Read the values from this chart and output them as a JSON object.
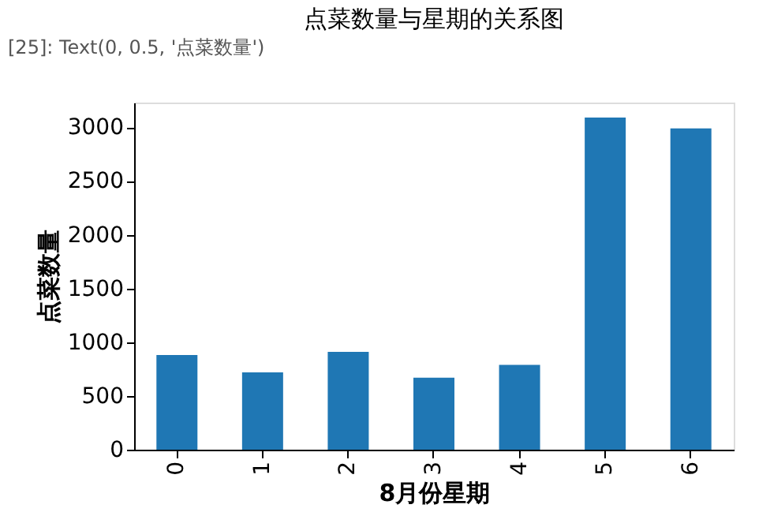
{
  "chart_data": {
    "type": "bar",
    "title": "点菜数量与星期的关系图",
    "xlabel": "8月份星期",
    "ylabel": "点菜数量",
    "annotations": [
      "[25]:  Text(0, 0.5, '点菜数量')"
    ],
    "categories": [
      "0",
      "1",
      "2",
      "3",
      "4",
      "5",
      "6"
    ],
    "values": [
      880,
      720,
      910,
      670,
      790,
      3090,
      2990
    ],
    "color": "#1f77b4",
    "ylim": [
      0,
      3230
    ],
    "yticks": [
      0,
      500,
      1000,
      1500,
      2000,
      2500,
      3000
    ],
    "grid": false
  }
}
